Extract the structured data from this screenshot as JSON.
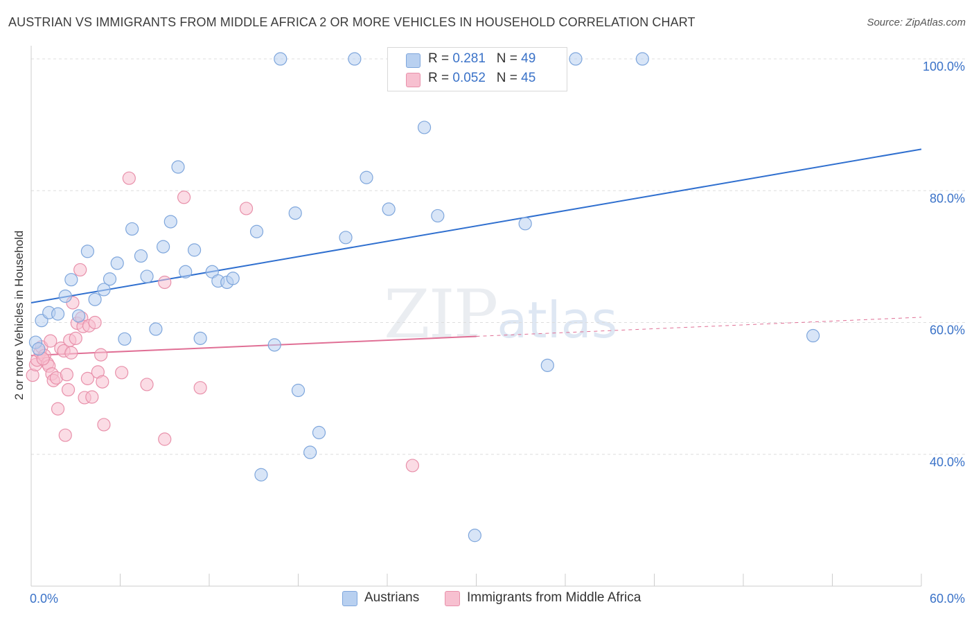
{
  "header": {
    "title": "AUSTRIAN VS IMMIGRANTS FROM MIDDLE AFRICA 2 OR MORE VEHICLES IN HOUSEHOLD CORRELATION CHART",
    "source": "Source: ZipAtlas.com"
  },
  "watermark": {
    "zip": "ZIP",
    "atlas": "atlas"
  },
  "legend_top": {
    "rows": [
      {
        "r_label": "R =",
        "r_value": "0.281",
        "n_label": "N =",
        "n_value": "49"
      },
      {
        "r_label": "R =",
        "r_value": "0.052",
        "n_label": "N =",
        "n_value": "45"
      }
    ]
  },
  "legend_bottom": {
    "items": [
      "Austrians",
      "Immigrants from Middle Africa"
    ]
  },
  "colors": {
    "blue_fill": "#b8d0f0",
    "blue_stroke": "#7ea6dc",
    "blue_line": "#2f6fcf",
    "pink_fill": "#f7c0d0",
    "pink_stroke": "#e890aa",
    "pink_line": "#e06f95",
    "grid": "#dddddd",
    "tick_label": "#3a72c8"
  },
  "chart_data": {
    "type": "scatter",
    "title": "AUSTRIAN VS IMMIGRANTS FROM MIDDLE AFRICA 2 OR MORE VEHICLES IN HOUSEHOLD CORRELATION CHART",
    "xlabel": "",
    "ylabel": "2 or more Vehicles in Household",
    "xlim": [
      0,
      60
    ],
    "ylim": [
      20,
      102
    ],
    "x_tick_labels": [
      "0.0%",
      "60.0%"
    ],
    "y_ticks": [
      40,
      60,
      80,
      100
    ],
    "y_tick_labels": [
      "40.0%",
      "60.0%",
      "80.0%",
      "100.0%"
    ],
    "grid": true,
    "legend_placement": "top-center",
    "series": [
      {
        "name": "Austrians",
        "r": 0.281,
        "n": 49,
        "points": [
          [
            0.3,
            57.0
          ],
          [
            0.7,
            60.3
          ],
          [
            1.2,
            61.5
          ],
          [
            1.8,
            61.3
          ],
          [
            2.3,
            64.0
          ],
          [
            2.7,
            66.5
          ],
          [
            3.2,
            61.0
          ],
          [
            3.8,
            70.8
          ],
          [
            4.3,
            63.5
          ],
          [
            4.9,
            65.0
          ],
          [
            5.3,
            66.6
          ],
          [
            5.8,
            69.0
          ],
          [
            6.3,
            57.5
          ],
          [
            6.8,
            74.2
          ],
          [
            7.4,
            70.1
          ],
          [
            7.8,
            67.0
          ],
          [
            8.4,
            59.0
          ],
          [
            8.9,
            71.5
          ],
          [
            9.4,
            75.3
          ],
          [
            9.9,
            83.6
          ],
          [
            10.4,
            67.7
          ],
          [
            11.0,
            71.0
          ],
          [
            11.4,
            57.6
          ],
          [
            12.2,
            67.7
          ],
          [
            12.6,
            66.3
          ],
          [
            13.2,
            66.1
          ],
          [
            13.6,
            66.7
          ],
          [
            15.2,
            73.8
          ],
          [
            15.5,
            36.9
          ],
          [
            16.4,
            56.6
          ],
          [
            16.8,
            100.0
          ],
          [
            17.8,
            76.6
          ],
          [
            18.0,
            49.7
          ],
          [
            18.8,
            40.3
          ],
          [
            19.4,
            43.3
          ],
          [
            21.2,
            72.9
          ],
          [
            21.8,
            100.0
          ],
          [
            22.6,
            82.0
          ],
          [
            24.1,
            77.2
          ],
          [
            26.5,
            89.6
          ],
          [
            27.1,
            100.0
          ],
          [
            27.4,
            76.2
          ],
          [
            29.9,
            27.7
          ],
          [
            33.3,
            75.0
          ],
          [
            34.8,
            53.5
          ],
          [
            36.7,
            100.0
          ],
          [
            41.2,
            100.0
          ],
          [
            52.7,
            58.0
          ],
          [
            0.5,
            56.0
          ]
        ]
      },
      {
        "name": "Immigrants from Middle Africa",
        "r": 0.052,
        "n": 45,
        "points": [
          [
            0.1,
            52.0
          ],
          [
            0.3,
            53.6
          ],
          [
            0.4,
            54.3
          ],
          [
            0.6,
            55.5
          ],
          [
            0.7,
            56.3
          ],
          [
            0.9,
            55.0
          ],
          [
            1.1,
            53.8
          ],
          [
            1.2,
            53.4
          ],
          [
            1.3,
            57.2
          ],
          [
            1.4,
            52.2
          ],
          [
            1.5,
            51.2
          ],
          [
            1.7,
            51.6
          ],
          [
            1.8,
            46.9
          ],
          [
            2.0,
            56.1
          ],
          [
            2.2,
            55.7
          ],
          [
            2.3,
            42.9
          ],
          [
            2.4,
            52.1
          ],
          [
            2.5,
            49.8
          ],
          [
            2.6,
            57.3
          ],
          [
            2.7,
            55.4
          ],
          [
            2.8,
            63.0
          ],
          [
            3.0,
            57.6
          ],
          [
            3.1,
            59.9
          ],
          [
            3.3,
            68.0
          ],
          [
            3.4,
            60.7
          ],
          [
            3.5,
            59.4
          ],
          [
            3.6,
            48.6
          ],
          [
            3.8,
            51.5
          ],
          [
            3.9,
            59.5
          ],
          [
            4.1,
            48.7
          ],
          [
            4.3,
            60.0
          ],
          [
            4.5,
            52.5
          ],
          [
            4.7,
            55.1
          ],
          [
            4.8,
            51.0
          ],
          [
            4.9,
            44.5
          ],
          [
            6.1,
            52.4
          ],
          [
            6.6,
            81.9
          ],
          [
            7.8,
            50.6
          ],
          [
            9.0,
            42.3
          ],
          [
            9.0,
            66.1
          ],
          [
            10.3,
            79.0
          ],
          [
            11.4,
            50.1
          ],
          [
            14.5,
            77.3
          ],
          [
            25.7,
            38.3
          ],
          [
            0.8,
            54.5
          ]
        ]
      }
    ],
    "trend_lines": [
      {
        "series": "Austrians",
        "x": [
          0,
          60
        ],
        "y": [
          63.0,
          86.3
        ],
        "style": "solid"
      },
      {
        "series": "Immigrants from Middle Africa",
        "x_solid": [
          0,
          30
        ],
        "x_dashed": [
          30,
          60
        ],
        "y_start": 55.0,
        "y_end": 60.8,
        "style": "solid-then-dashed"
      }
    ]
  }
}
